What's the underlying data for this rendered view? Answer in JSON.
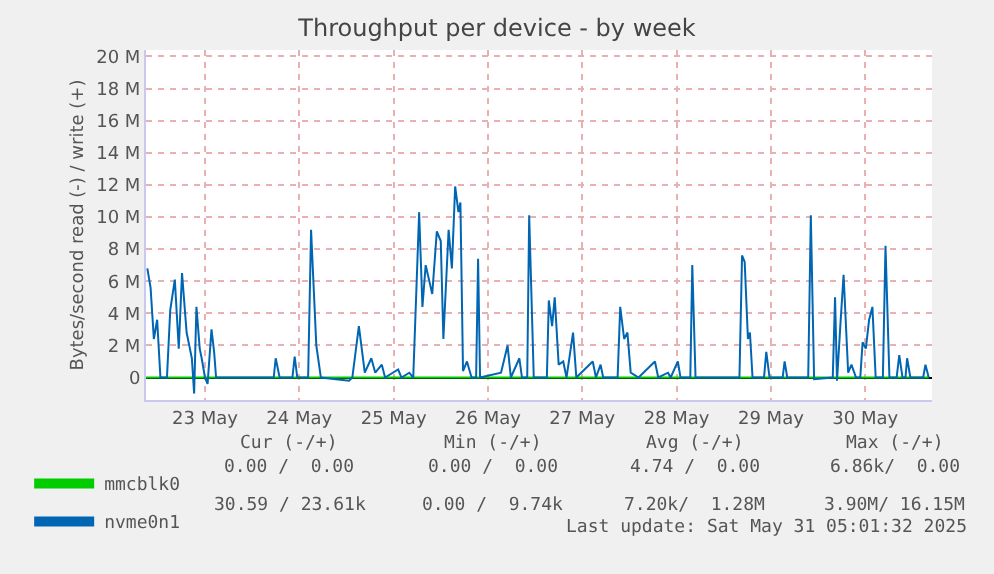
{
  "chart_data": {
    "type": "line",
    "title": "Throughput per device - by week",
    "ylabel": "Bytes/second read (-) / write (+)",
    "xlim": [
      "2025-05-22T21:00",
      "2025-05-31T05:00"
    ],
    "xticks": [
      {
        "value": "2025-05-23T12:00",
        "label": "23 May"
      },
      {
        "value": "2025-05-24T12:00",
        "label": "24 May"
      },
      {
        "value": "2025-05-25T12:00",
        "label": "25 May"
      },
      {
        "value": "2025-05-26T12:00",
        "label": "26 May"
      },
      {
        "value": "2025-05-27T12:00",
        "label": "27 May"
      },
      {
        "value": "2025-05-28T12:00",
        "label": "28 May"
      },
      {
        "value": "2025-05-29T12:00",
        "label": "29 May"
      },
      {
        "value": "2025-05-30T12:00",
        "label": "30 May"
      }
    ],
    "ylim": [
      -1400000,
      20400000
    ],
    "yticks": [
      0,
      {
        "value": 2000000,
        "label": "2 M"
      },
      {
        "value": 4000000,
        "label": "4 M"
      },
      {
        "value": 6000000,
        "label": "6 M"
      },
      {
        "value": 8000000,
        "label": "8 M"
      },
      {
        "value": 10000000,
        "label": "10 M"
      },
      {
        "value": 12000000,
        "label": "12 M"
      },
      {
        "value": 14000000,
        "label": "14 M"
      },
      {
        "value": 16000000,
        "label": "16 M"
      },
      {
        "value": 18000000,
        "label": "18 M"
      },
      {
        "value": 20000000,
        "label": "20 M"
      }
    ],
    "grid": true,
    "legend": "bottom left",
    "series": [
      {
        "name": "mmcblk0",
        "color": "#00cc00",
        "x": [
          "2025-05-22T21:00",
          "2025-05-31T04:10"
        ],
        "values": [
          0,
          0
        ]
      },
      {
        "name": "nvme0n1",
        "color": "#0066b3",
        "x": [
          "2025-05-22T21:20",
          "2025-05-22T22:10",
          "2025-05-22T23:00",
          "2025-05-22T23:50",
          "2025-05-23T00:40",
          "2025-05-23T02:20",
          "2025-05-23T03:10",
          "2025-05-23T04:20",
          "2025-05-23T05:20",
          "2025-05-23T06:10",
          "2025-05-23T07:20",
          "2025-05-23T08:40",
          "2025-05-23T09:15",
          "2025-05-23T09:50",
          "2025-05-23T10:40",
          "2025-05-23T11:10",
          "2025-05-23T12:00",
          "2025-05-23T12:40",
          "2025-05-23T13:40",
          "2025-05-23T14:20",
          "2025-05-23T14:50",
          "2025-05-24T05:30",
          "2025-05-24T06:00",
          "2025-05-24T07:00",
          "2025-05-24T10:15",
          "2025-05-24T10:50",
          "2025-05-24T11:30",
          "2025-05-24T14:15",
          "2025-05-24T15:00",
          "2025-05-24T16:20",
          "2025-05-24T17:30",
          "2025-05-25T00:40",
          "2025-05-25T01:30",
          "2025-05-25T03:10",
          "2025-05-25T04:40",
          "2025-05-25T06:20",
          "2025-05-25T07:20",
          "2025-05-25T09:00",
          "2025-05-25T09:50",
          "2025-05-25T13:10",
          "2025-05-25T14:00",
          "2025-05-25T16:00",
          "2025-05-25T17:00",
          "2025-05-25T18:30",
          "2025-05-25T19:20",
          "2025-05-25T20:10",
          "2025-05-25T21:50",
          "2025-05-25T23:00",
          "2025-05-26T00:00",
          "2025-05-26T00:40",
          "2025-05-26T02:00",
          "2025-05-26T02:50",
          "2025-05-26T03:40",
          "2025-05-26T04:30",
          "2025-05-26T05:00",
          "2025-05-26T05:40",
          "2025-05-26T06:40",
          "2025-05-26T07:50",
          "2025-05-26T09:00",
          "2025-05-26T09:30",
          "2025-05-26T10:00",
          "2025-05-26T15:20",
          "2025-05-26T17:00",
          "2025-05-26T17:50",
          "2025-05-26T20:00",
          "2025-05-26T20:40",
          "2025-05-26T22:00",
          "2025-05-26T22:30",
          "2025-05-26T23:40",
          "2025-05-27T03:00",
          "2025-05-27T03:30",
          "2025-05-27T04:20",
          "2025-05-27T05:00",
          "2025-05-27T06:00",
          "2025-05-27T07:10",
          "2025-05-27T08:00",
          "2025-05-27T09:40",
          "2025-05-27T10:30",
          "2025-05-27T14:40",
          "2025-05-27T15:30",
          "2025-05-27T16:40",
          "2025-05-27T17:20",
          "2025-05-27T21:00",
          "2025-05-27T21:40",
          "2025-05-27T22:40",
          "2025-05-27T23:30",
          "2025-05-28T00:20",
          "2025-05-28T02:20",
          "2025-05-28T06:30",
          "2025-05-28T07:20",
          "2025-05-28T09:50",
          "2025-05-28T10:30",
          "2025-05-28T12:20",
          "2025-05-28T13:00",
          "2025-05-28T15:30",
          "2025-05-28T16:00",
          "2025-05-28T16:50",
          "2025-05-29T04:00",
          "2025-05-29T04:40",
          "2025-05-29T05:20",
          "2025-05-29T06:10",
          "2025-05-29T06:40",
          "2025-05-29T07:20",
          "2025-05-29T10:15",
          "2025-05-29T10:50",
          "2025-05-29T11:40",
          "2025-05-29T15:00",
          "2025-05-29T15:30",
          "2025-05-29T16:10",
          "2025-05-29T21:30",
          "2025-05-29T22:10",
          "2025-05-29T23:00",
          "2025-05-30T03:45",
          "2025-05-30T04:20",
          "2025-05-30T04:50",
          "2025-05-30T05:40",
          "2025-05-30T06:30",
          "2025-05-30T07:40",
          "2025-05-30T08:30",
          "2025-05-30T09:40",
          "2025-05-30T10:45",
          "2025-05-30T11:20",
          "2025-05-30T12:10",
          "2025-05-30T13:00",
          "2025-05-30T13:50",
          "2025-05-30T14:40",
          "2025-05-30T16:30",
          "2025-05-30T17:10",
          "2025-05-30T18:10",
          "2025-05-30T20:00",
          "2025-05-30T20:40",
          "2025-05-30T21:30",
          "2025-05-30T22:15",
          "2025-05-30T22:40",
          "2025-05-30T23:30",
          "2025-05-31T02:45",
          "2025-05-31T03:20",
          "2025-05-31T04:10"
        ],
        "values": [
          6800000.0,
          5600000.0,
          2400000.0,
          3600000.0,
          0,
          0,
          4200000.0,
          6100000.0,
          1800000.0,
          6500000.0,
          2800000.0,
          1200000.0,
          -1000000.0,
          4400000.0,
          1800000.0,
          1200000.0,
          0,
          -400000.0,
          3000000.0,
          1600000.0,
          0,
          0,
          1200000.0,
          0,
          0,
          1300000.0,
          0,
          0,
          9200000.0,
          2000000.0,
          0,
          -200000.0,
          0,
          3200000.0,
          300000.0,
          1200000.0,
          300000.0,
          800000.0,
          0,
          500000.0,
          0,
          300000.0,
          0,
          10300000.0,
          4400000.0,
          7000000.0,
          5200000.0,
          9100000.0,
          8500000.0,
          2400000.0,
          9200000.0,
          6800000.0,
          11900000.0,
          10300000.0,
          10900000.0,
          400000.0,
          1000000.0,
          0,
          0,
          7400000.0,
          0,
          300000.0,
          2000000.0,
          0,
          1200000.0,
          0,
          0,
          10100000.0,
          0,
          0,
          4800000.0,
          3200000.0,
          5000000.0,
          800000.0,
          1000000.0,
          0,
          2800000.0,
          0,
          1000000.0,
          0,
          800000.0,
          0,
          0,
          4400000.0,
          2400000.0,
          2800000.0,
          300000.0,
          0,
          1000000.0,
          0,
          300000.0,
          0,
          1000000.0,
          0,
          0,
          7000000.0,
          0,
          0,
          7600000.0,
          7200000.0,
          2400000.0,
          2800000.0,
          0,
          0,
          1600000.0,
          0,
          0,
          1000000.0,
          0,
          0,
          10100000.0,
          -100000.0,
          0,
          5000000.0,
          -200000.0,
          3200000.0,
          6400000.0,
          300000.0,
          800000.0,
          0,
          0,
          2200000.0,
          1800000.0,
          3600000.0,
          4400000.0,
          0,
          0,
          8200000.0,
          0,
          0,
          1400000.0,
          0,
          0,
          1200000.0,
          0,
          0,
          800000.0,
          0
        ]
      }
    ],
    "annotations": [
      "Cur (-/+)",
      "Min (-/+)",
      "Avg (-/+)",
      "Max (-/+)",
      "0.00 /  0.00",
      "0.00 /  0.00",
      "4.74 /  0.00",
      "6.86k/  0.00",
      "30.59 / 23.61k",
      "0.00 /  9.74k",
      "7.20k/  1.28M",
      "3.90M/ 16.15M",
      "Last update: Sat May 31 05:01:32 2025"
    ]
  }
}
